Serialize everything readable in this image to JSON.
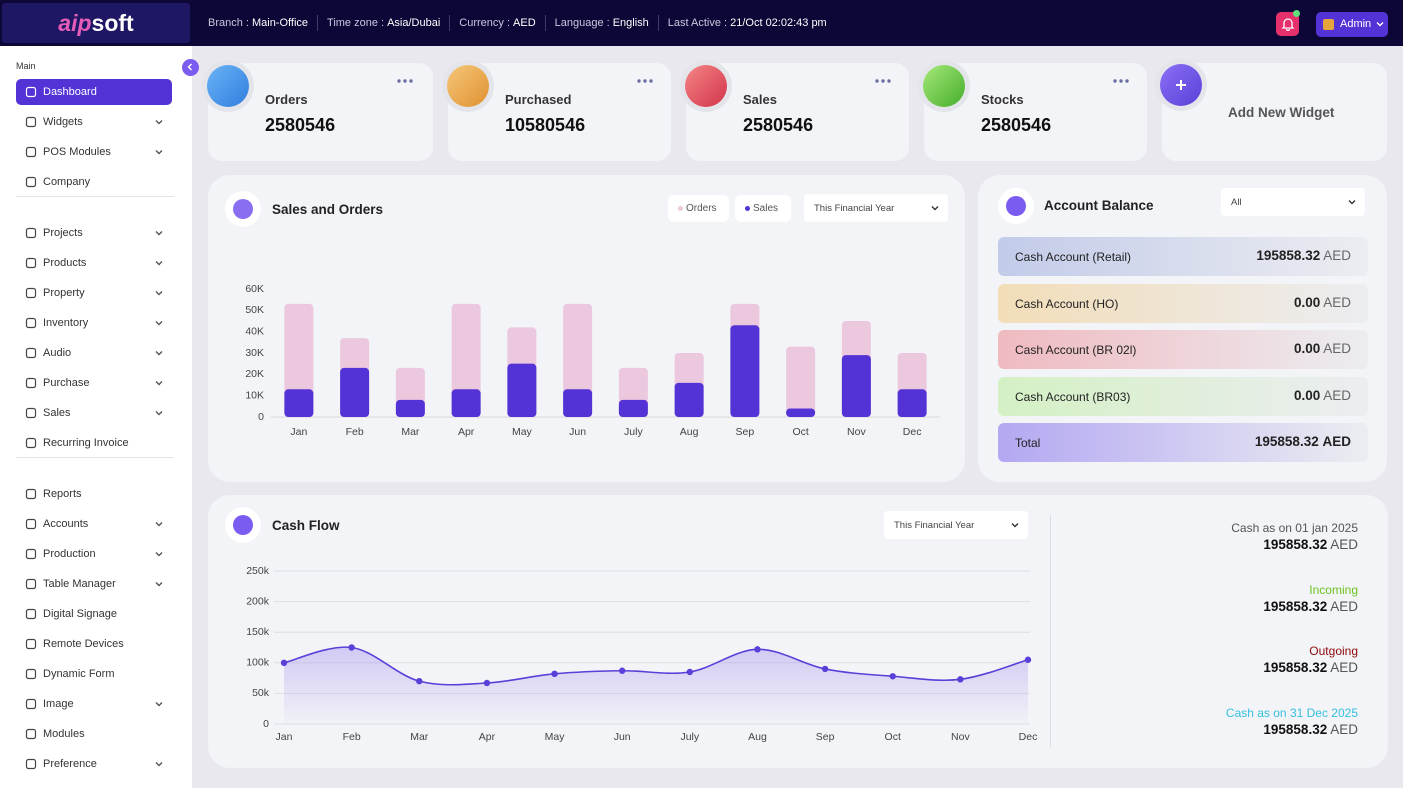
{
  "topbar": {
    "logo_a": "aip",
    "logo_b": "soft",
    "info": [
      {
        "label": "Branch :",
        "value": "Main-Office"
      },
      {
        "label": "Time zone :",
        "value": "Asia/Dubai"
      },
      {
        "label": "Currency :",
        "value": "AED"
      },
      {
        "label": "Language :",
        "value": "English"
      },
      {
        "label": "Last Active :",
        "value": "21/Oct 02:02:43 pm"
      }
    ],
    "user": "Admin"
  },
  "sidebar": {
    "section": "Main",
    "groups": [
      [
        {
          "label": "Dashboard",
          "active": true
        },
        {
          "label": "Widgets",
          "sub": true
        },
        {
          "label": "POS Modules",
          "sub": true
        },
        {
          "label": "Company"
        }
      ],
      [
        {
          "label": "Projects",
          "sub": true
        },
        {
          "label": "Products",
          "sub": true
        },
        {
          "label": "Property",
          "sub": true
        },
        {
          "label": "Inventory",
          "sub": true
        },
        {
          "label": "Audio",
          "sub": true
        },
        {
          "label": "Purchase",
          "sub": true
        },
        {
          "label": "Sales",
          "sub": true
        },
        {
          "label": "Recurring Invoice"
        }
      ],
      [
        {
          "label": "Reports"
        },
        {
          "label": "Accounts",
          "sub": true
        },
        {
          "label": "Production",
          "sub": true
        },
        {
          "label": "Table Manager",
          "sub": true
        },
        {
          "label": "Digital Signage"
        },
        {
          "label": "Remote Devices"
        },
        {
          "label": "Dynamic Form"
        },
        {
          "label": "Image",
          "sub": true
        },
        {
          "label": "Modules"
        },
        {
          "label": "Preference",
          "sub": true
        }
      ]
    ]
  },
  "widgets": [
    {
      "title": "Orders",
      "value": 2580546
    },
    {
      "title": "Purchased",
      "value": 10580546
    },
    {
      "title": "Sales",
      "value": 2580546
    },
    {
      "title": "Stocks",
      "value": 2580546
    }
  ],
  "add_widget": "Add New Widget",
  "sales_orders": {
    "type": "bar",
    "title": "Sales and Orders",
    "period": "This Financial Year",
    "categories": [
      "Jan",
      "Feb",
      "Mar",
      "Apr",
      "May",
      "Jun",
      "July",
      "Aug",
      "Sep",
      "Oct",
      "Nov",
      "Dec"
    ],
    "series": [
      {
        "name": "Orders",
        "color": "#ecc8de",
        "values": [
          53000,
          37000,
          23000,
          53000,
          42000,
          53000,
          23000,
          30000,
          53000,
          33000,
          45000,
          30000
        ]
      },
      {
        "name": "Sales",
        "color": "#5333d6",
        "values": [
          13000,
          23000,
          8000,
          13000,
          25000,
          13000,
          8000,
          16000,
          43000,
          4000,
          29000,
          13000
        ]
      }
    ],
    "ylim": [
      0,
      60000
    ],
    "yticks": [
      0,
      {
        "value": 10000,
        "label": "10K"
      },
      {
        "value": 20000,
        "label": "20K"
      },
      {
        "value": 30000,
        "label": "30K"
      },
      {
        "value": 40000,
        "label": "40K"
      },
      {
        "value": 50000,
        "label": "50K"
      },
      {
        "value": 60000,
        "label": "60K"
      }
    ]
  },
  "account_balance": {
    "title": "Account Balance",
    "filter": "All",
    "rows": [
      {
        "name": "Cash Account (Retail)",
        "amount": "195858.32",
        "currency": "AED"
      },
      {
        "name": "Cash Account (HO)",
        "amount": "0.00",
        "currency": "AED"
      },
      {
        "name": "Cash Account (BR 02l)",
        "amount": "0.00",
        "currency": "AED"
      },
      {
        "name": "Cash Account (BR03)",
        "amount": "0.00",
        "currency": "AED"
      }
    ],
    "total": {
      "name": "Total",
      "amount": "195858.32",
      "currency": "AED"
    }
  },
  "cash_flow": {
    "type": "line",
    "title": "Cash Flow",
    "period": "This Financial Year",
    "categories": [
      "Jan",
      "Feb",
      "Mar",
      "Apr",
      "May",
      "Jun",
      "July",
      "Aug",
      "Sep",
      "Oct",
      "Nov",
      "Dec"
    ],
    "values": [
      100000,
      125000,
      70000,
      67000,
      82000,
      87000,
      85000,
      122000,
      90000,
      78000,
      73000,
      105000
    ],
    "color": "#5a3fd8",
    "ylim": [
      0,
      250000
    ],
    "yticks": [
      0,
      {
        "value": 50000,
        "label": "50k"
      },
      {
        "value": 100000,
        "label": "100k"
      },
      {
        "value": 150000,
        "label": "150k"
      },
      {
        "value": 200000,
        "label": "200k"
      },
      {
        "value": 250000,
        "label": "250k"
      }
    ],
    "grid": true
  },
  "summary": [
    {
      "label": "Cash as on 01 jan 2025",
      "amount": "195858.32",
      "currency": "AED",
      "color": "#555555"
    },
    {
      "label": "Incoming",
      "amount": "195858.32",
      "currency": "AED",
      "color": "#6cc21e"
    },
    {
      "label": "Outgoing",
      "amount": "195858.32",
      "currency": "AED",
      "color": "#8b0a0a"
    },
    {
      "label": "Cash as on 31 Dec 2025",
      "amount": "195858.32",
      "currency": "AED",
      "color": "#36bfe0"
    }
  ]
}
